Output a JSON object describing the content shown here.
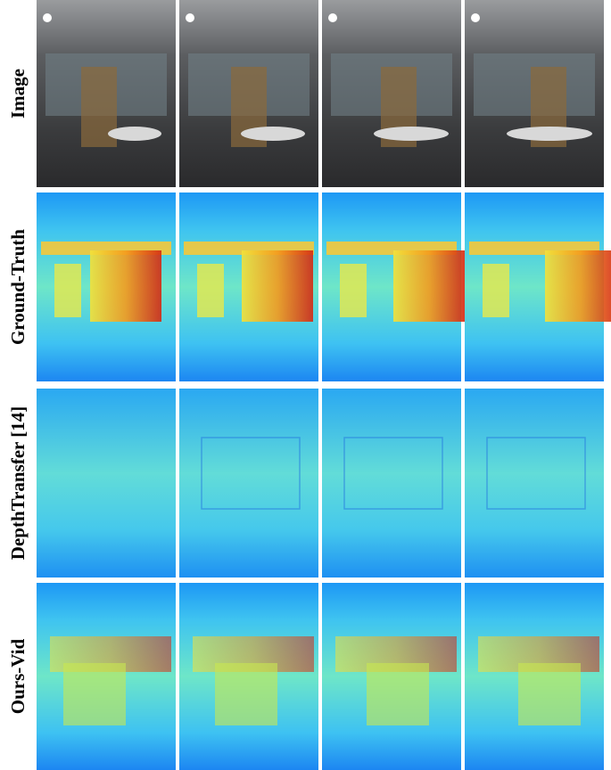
{
  "figure": {
    "rows": [
      {
        "label": "Image"
      },
      {
        "label": "Ground-Truth"
      },
      {
        "label": "DepthTransfer [14]"
      },
      {
        "label": "Ours-Vid"
      }
    ]
  }
}
